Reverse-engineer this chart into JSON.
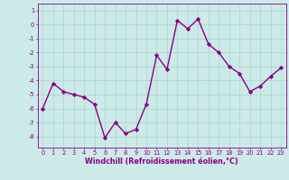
{
  "x": [
    0,
    1,
    2,
    3,
    4,
    5,
    6,
    7,
    8,
    9,
    10,
    11,
    12,
    13,
    14,
    15,
    16,
    17,
    18,
    19,
    20,
    21,
    22,
    23
  ],
  "y": [
    -6.0,
    -4.2,
    -4.8,
    -5.0,
    -5.2,
    -5.7,
    -8.1,
    -7.0,
    -7.8,
    -7.5,
    -5.7,
    -2.2,
    -3.2,
    0.3,
    -0.3,
    0.4,
    -1.4,
    -2.0,
    -3.0,
    -3.5,
    -4.8,
    -4.4,
    -3.7,
    -3.1
  ],
  "line_color": "#880088",
  "marker": "D",
  "marker_size": 2.2,
  "bg_color": "#cceae8",
  "grid_color": "#aad4d0",
  "xlabel": "Windchill (Refroidissement éolien,°C)",
  "ylim": [
    -8.8,
    1.5
  ],
  "xlim": [
    -0.5,
    23.5
  ],
  "yticks": [
    1,
    0,
    -1,
    -2,
    -3,
    -4,
    -5,
    -6,
    -7,
    -8
  ],
  "xticks": [
    0,
    1,
    2,
    3,
    4,
    5,
    6,
    7,
    8,
    9,
    10,
    11,
    12,
    13,
    14,
    15,
    16,
    17,
    18,
    19,
    20,
    21,
    22,
    23
  ],
  "tick_color": "#880088",
  "tick_fontsize": 4.8,
  "xlabel_fontsize": 5.8,
  "line_width": 1.0
}
